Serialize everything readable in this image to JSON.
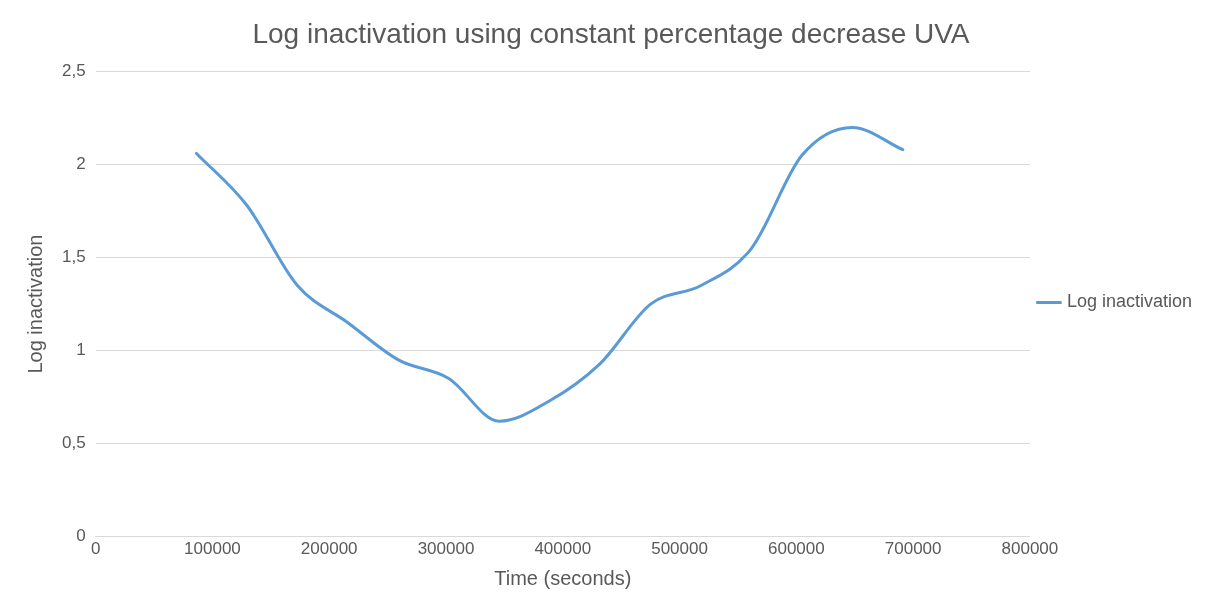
{
  "chart_data": {
    "type": "line",
    "title": "Log inactivation using constant percentage decrease UVA",
    "xlabel": "Time (seconds)",
    "ylabel": "Log inactivation",
    "x": [
      86400,
      129600,
      172800,
      216000,
      259200,
      302400,
      345600,
      388800,
      432000,
      475200,
      518400,
      561600,
      604800,
      648000,
      691200
    ],
    "series": [
      {
        "name": "Log inactivation",
        "color": "#5b9bd5",
        "values": [
          2.06,
          1.78,
          1.35,
          1.15,
          0.95,
          0.85,
          0.62,
          0.73,
          0.93,
          1.25,
          1.35,
          1.55,
          2.05,
          2.2,
          2.08
        ]
      }
    ],
    "xlim": [
      0,
      800000
    ],
    "xticks": [
      0,
      100000,
      200000,
      300000,
      400000,
      500000,
      600000,
      700000,
      800000
    ],
    "ylim": [
      0,
      2.5
    ],
    "yticks": [
      0,
      {
        "value": 0.5,
        "label": "0,5"
      },
      1,
      {
        "value": 1.5,
        "label": "1,5"
      },
      2,
      {
        "value": 2.5,
        "label": "2,5"
      }
    ],
    "grid": "y",
    "legend": "right",
    "marker": "none",
    "line_style": "solid"
  }
}
